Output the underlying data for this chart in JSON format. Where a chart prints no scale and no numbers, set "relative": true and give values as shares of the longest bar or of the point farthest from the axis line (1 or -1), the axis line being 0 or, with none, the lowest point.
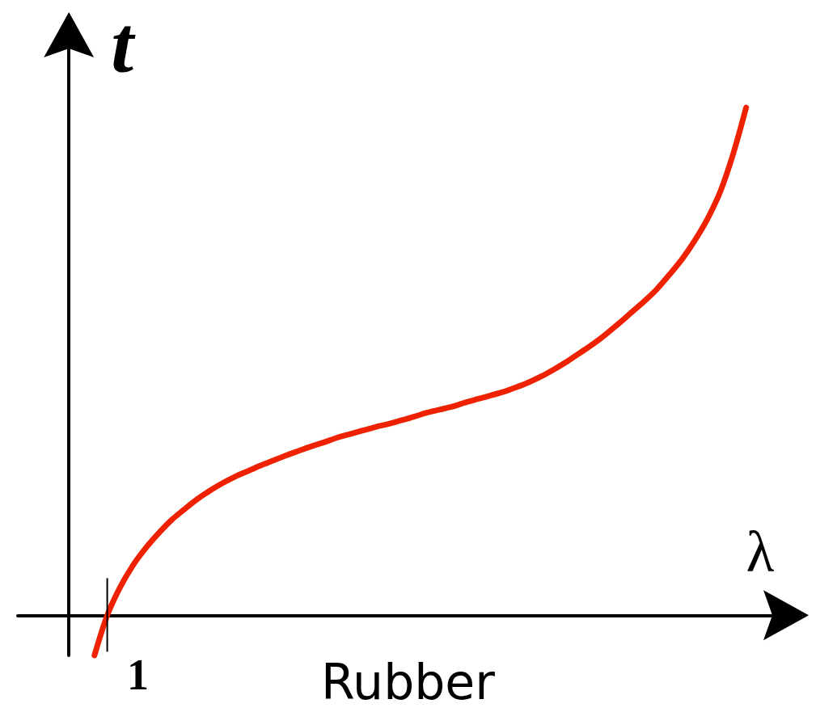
{
  "chart_data": {
    "type": "line",
    "title": "Rubber",
    "xlabel": "λ",
    "ylabel": "t",
    "categories": [
      null,
      null,
      null,
      null,
      null,
      null,
      null,
      null,
      null,
      null,
      null,
      null,
      null,
      null,
      null,
      null,
      null,
      null,
      null,
      null,
      null,
      null,
      null,
      null,
      null,
      null,
      null,
      null,
      null,
      null,
      null,
      null,
      null,
      null,
      null,
      null,
      null,
      null,
      null,
      null,
      null,
      null,
      null,
      null,
      null,
      null,
      null,
      null,
      null,
      null,
      null,
      null,
      null,
      null,
      null,
      null,
      null,
      null,
      null,
      null,
      null
    ],
    "values": [
      null,
      null,
      null,
      null,
      null,
      null,
      -0.079,
      0,
      0.055,
      0.098,
      0.132,
      0.161,
      0.187,
      0.208,
      0.228,
      0.245,
      0.26,
      0.273,
      0.284,
      0.295,
      0.305,
      0.315,
      0.324,
      0.333,
      0.341,
      0.35,
      0.357,
      0.364,
      0.371,
      0.377,
      0.384,
      0.391,
      0.399,
      0.405,
      0.411,
      0.419,
      0.426,
      0.433,
      0.44,
      0.449,
      0.459,
      0.471,
      0.485,
      0.5,
      0.517,
      0.534,
      0.553,
      0.574,
      0.596,
      0.618,
      0.642,
      0.671,
      0.702,
      0.739,
      0.782,
      0.836,
      0.91,
      1,
      null,
      null,
      null
    ],
    "color": "#ee2200",
    "relative": true,
    "grid": false,
    "marker": "none",
    "line_style": "solid",
    "annotations": [
      "1"
    ]
  }
}
